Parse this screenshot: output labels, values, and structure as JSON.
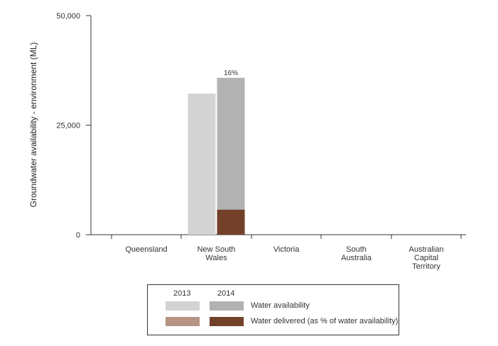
{
  "chart_data": {
    "type": "bar",
    "ylabel": "Groundwater availability - environment (ML)",
    "ylim": [
      0,
      50000
    ],
    "yticks": [
      0,
      25000,
      50000
    ],
    "ytick_labels": [
      "0",
      "25,000",
      "50,000"
    ],
    "categories": [
      "Queensland",
      "New South Wales",
      "Victoria",
      "South Australia",
      "Australian Capital Territory"
    ],
    "category_lines": [
      [
        "Queensland"
      ],
      [
        "New South",
        "Wales"
      ],
      [
        "Victoria"
      ],
      [
        "South",
        "Australia"
      ],
      [
        "Australian",
        "Capital",
        "Territory"
      ]
    ],
    "series": [
      {
        "name": "Water availability",
        "year": "2013",
        "values": [
          0,
          32200,
          0,
          0,
          0
        ],
        "color": "#d3d3d3"
      },
      {
        "name": "Water availability",
        "year": "2014",
        "values": [
          0,
          35800,
          0,
          0,
          0
        ],
        "color": "#b2b2b2"
      },
      {
        "name": "Water delivered (as % of water availability)",
        "year": "2013",
        "values": [
          0,
          0,
          0,
          0,
          0
        ],
        "color": "#b59385"
      },
      {
        "name": "Water delivered (as % of water availability)",
        "year": "2014",
        "values": [
          0,
          5700,
          0,
          0,
          0
        ],
        "color": "#73402a"
      }
    ],
    "annotations": [
      {
        "category": "New South Wales",
        "year": "2014",
        "text": "16%"
      }
    ],
    "grid": false
  },
  "legend": {
    "years": [
      "2013",
      "2014"
    ],
    "rows": [
      {
        "label": "Water availability",
        "colors": [
          "#d3d3d3",
          "#b2b2b2"
        ]
      },
      {
        "label": "Water delivered (as % of water availability)",
        "colors": [
          "#b59385",
          "#73402a"
        ]
      }
    ]
  }
}
